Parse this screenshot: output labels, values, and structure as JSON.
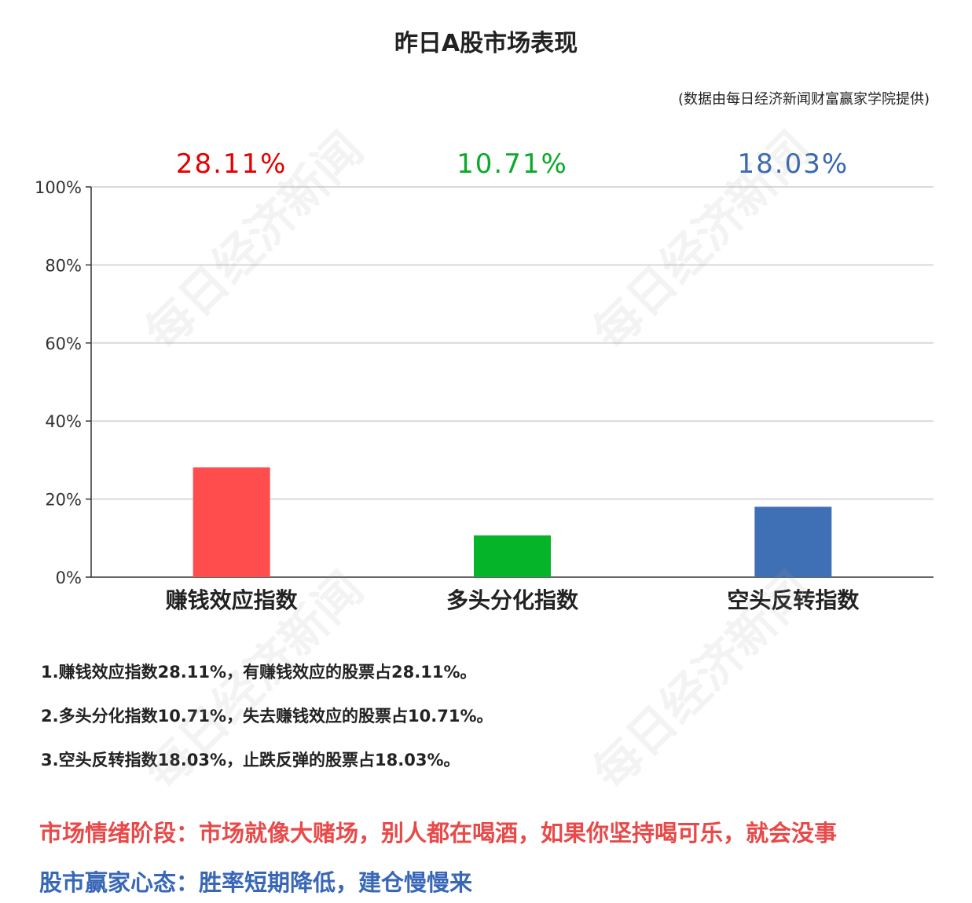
{
  "title": "昨日A股市场表现",
  "source_note": "(数据由每日经济新闻财富赢家学院提供)",
  "watermark": "每日经济新闻",
  "chart_data": {
    "type": "bar",
    "categories": [
      "赚钱效应指数",
      "多头分化指数",
      "空头反转指数"
    ],
    "values": [
      28.11,
      10.71,
      18.03
    ],
    "value_labels": [
      "28.11%",
      "10.71%",
      "18.03%"
    ],
    "colors": [
      "#ff4d4d",
      "#06b42a",
      "#3f6fb5"
    ],
    "label_colors": [
      "#e60000",
      "#0aaa2a",
      "#3868b0"
    ],
    "ylim": [
      0,
      100
    ],
    "yticks": [
      0,
      20,
      40,
      60,
      80,
      100
    ],
    "ytick_labels": [
      "0%",
      "20%",
      "40%",
      "60%",
      "80%",
      "100%"
    ],
    "grid": true,
    "xlabel": "",
    "ylabel": ""
  },
  "notes": [
    "1.赚钱效应指数28.11%，有赚钱效应的股票占28.11%。",
    "2.多头分化指数10.71%，失去赚钱效应的股票占10.71%。",
    "3.空头反转指数18.03%，止跌反弹的股票占18.03%。"
  ],
  "market_mood": "市场情绪阶段：市场就像大赌场，别人都在喝酒，如果你坚持喝可乐，就会没事",
  "investor_mindset": "股市赢家心态：胜率短期降低，建仓慢慢来"
}
